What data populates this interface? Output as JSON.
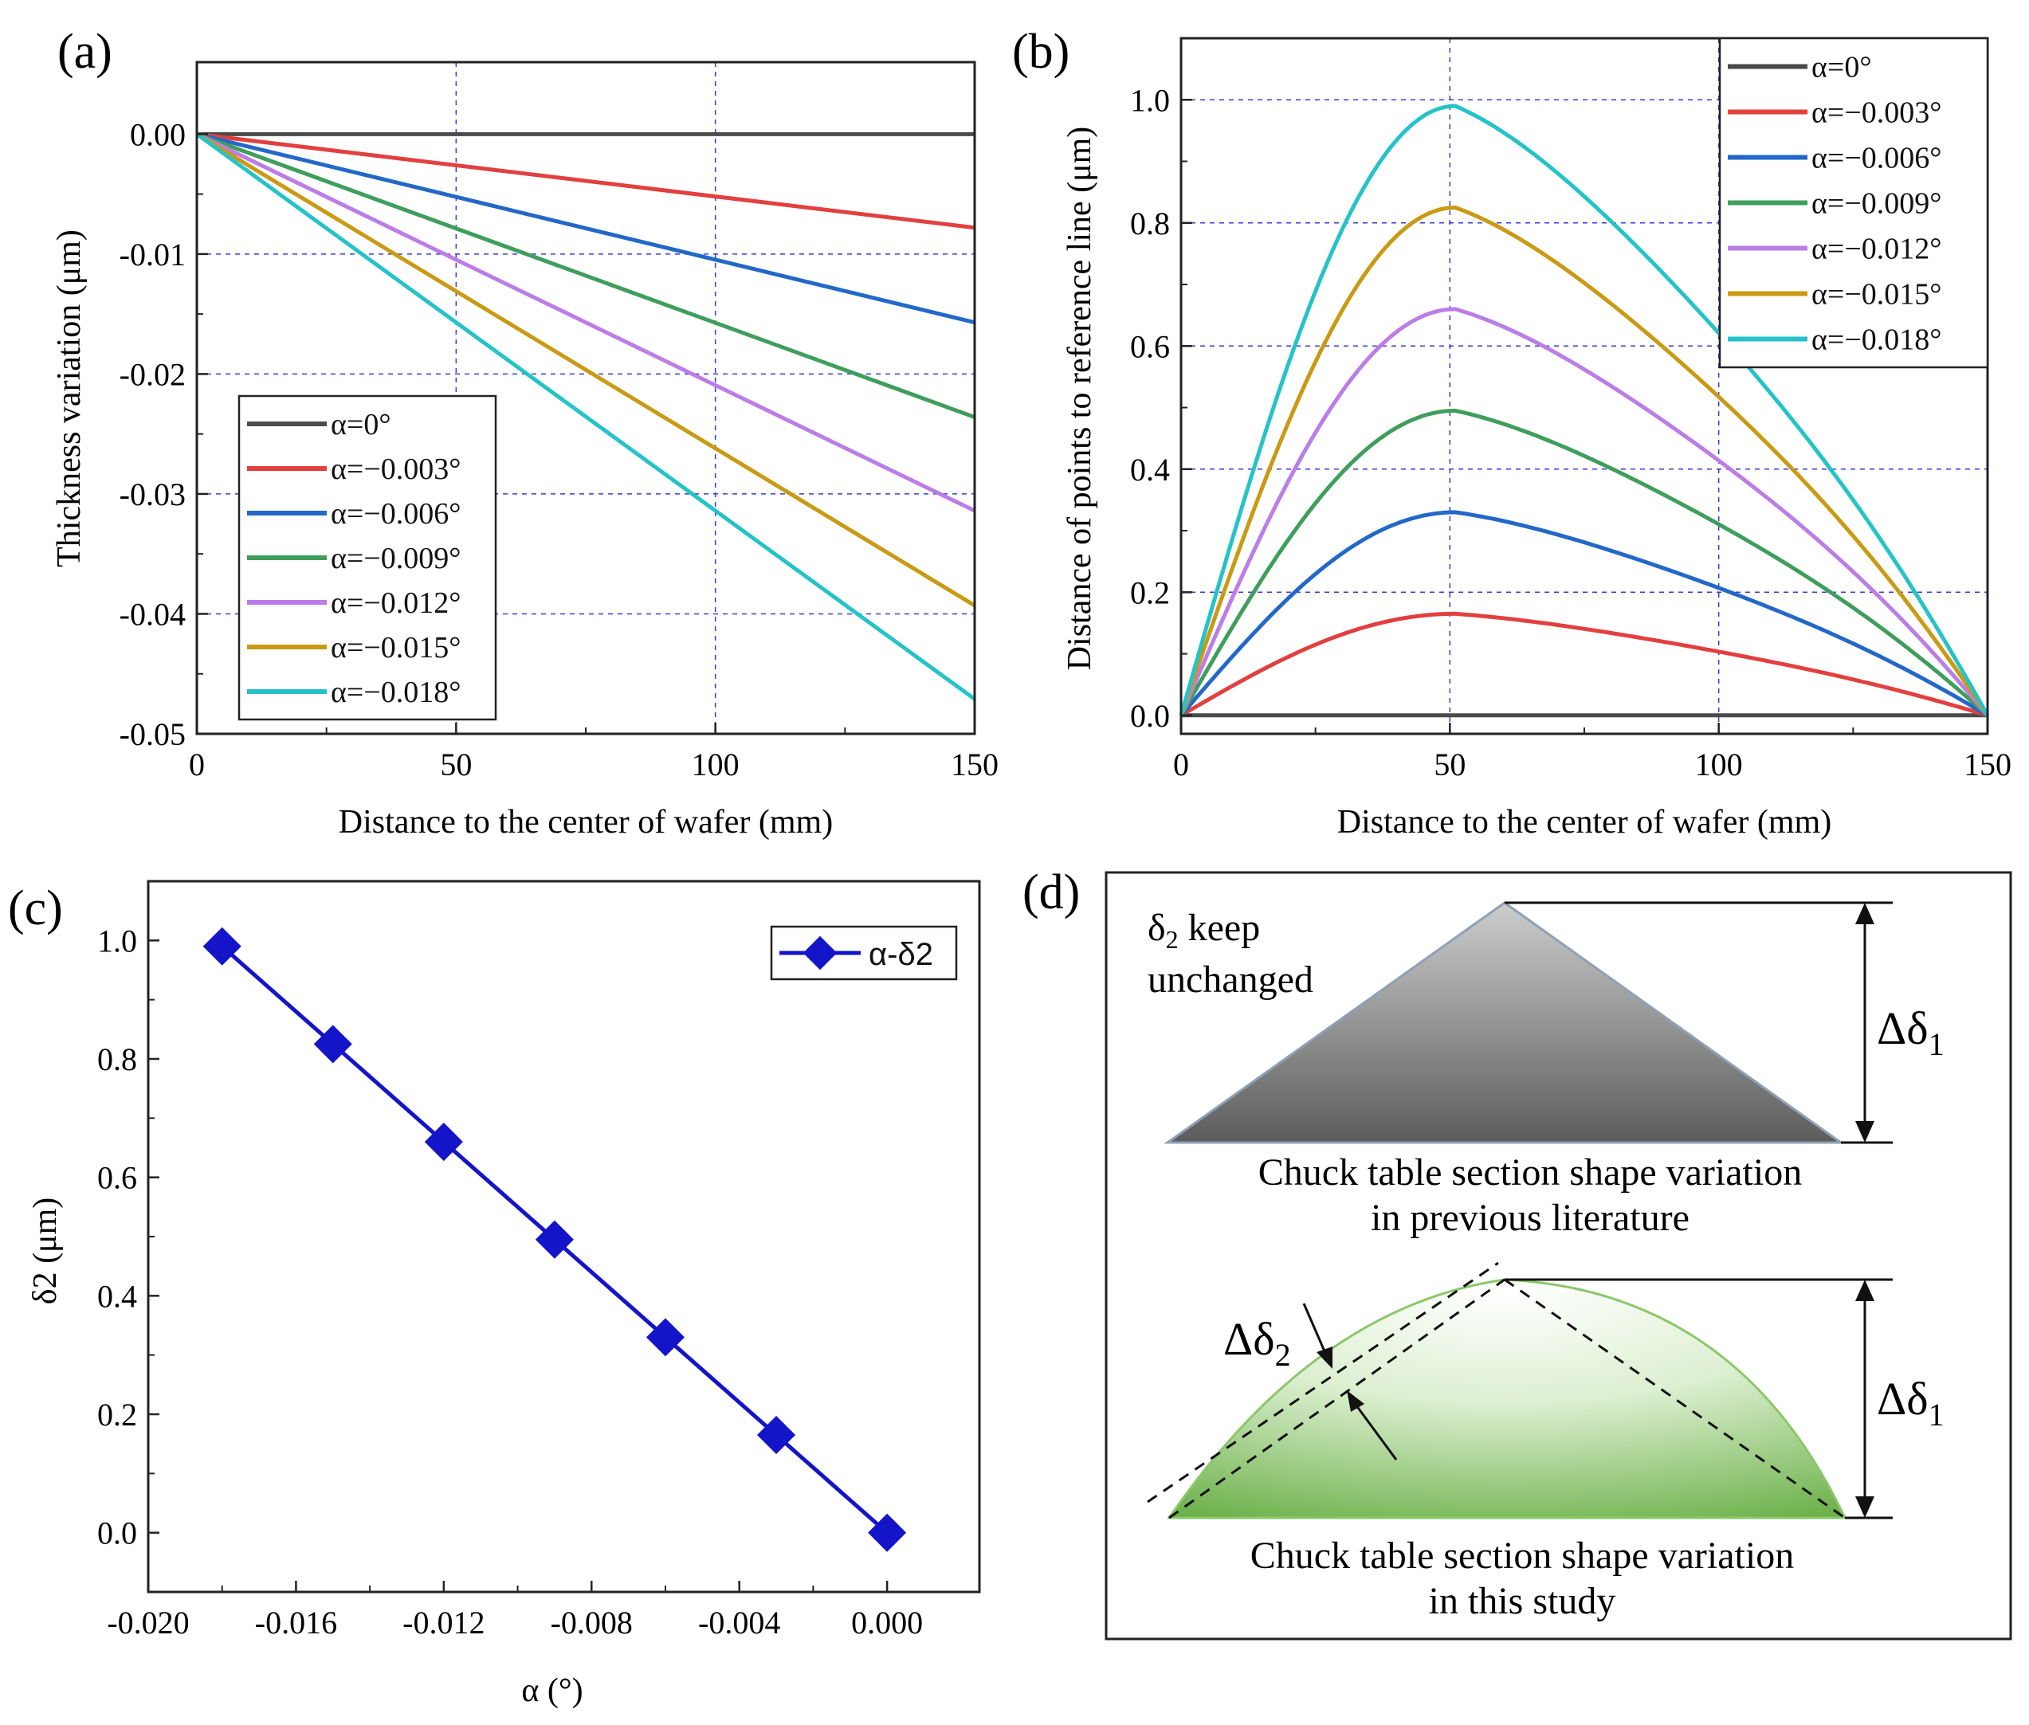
{
  "chart_data": [
    {
      "id": "a",
      "type": "line",
      "panel_label": "(a)",
      "xlabel": "Distance to the center of wafer (mm)",
      "ylabel": "Thickness variation (μm)",
      "xlim": [
        0,
        150
      ],
      "ylim": [
        -0.05,
        0.006
      ],
      "xticks": [
        0,
        50,
        100,
        150
      ],
      "xtick_labels": [
        "0",
        "50",
        "100",
        "150"
      ],
      "yticks": [
        0,
        -0.01,
        -0.02,
        -0.03,
        -0.04,
        -0.05
      ],
      "ytick_labels": [
        "0.00",
        "-0.01",
        "-0.02",
        "-0.03",
        "-0.04",
        "-0.05"
      ],
      "grid": "dashed",
      "legend_position": "bottom-left",
      "series": [
        {
          "name": "α=0°",
          "color": "#4a4a4a",
          "x": [
            0,
            150
          ],
          "y": [
            0,
            0
          ]
        },
        {
          "name": "α=−0.003°",
          "color": "#e2403f",
          "x": [
            0,
            150
          ],
          "y": [
            0,
            -0.0078
          ]
        },
        {
          "name": "α=−0.006°",
          "color": "#2368c9",
          "x": [
            0,
            150
          ],
          "y": [
            0,
            -0.0157
          ]
        },
        {
          "name": "α=−0.009°",
          "color": "#3f9e5c",
          "x": [
            0,
            150
          ],
          "y": [
            0,
            -0.0236
          ]
        },
        {
          "name": "α=−0.012°",
          "color": "#bb7de6",
          "x": [
            0,
            150
          ],
          "y": [
            0,
            -0.0314
          ]
        },
        {
          "name": "α=−0.015°",
          "color": "#c99a13",
          "x": [
            0,
            150
          ],
          "y": [
            0,
            -0.0393
          ]
        },
        {
          "name": "α=−0.018°",
          "color": "#25c3c8",
          "x": [
            0,
            150
          ],
          "y": [
            0,
            -0.0471
          ]
        }
      ]
    },
    {
      "id": "b",
      "type": "line",
      "panel_label": "(b)",
      "xlabel": "Distance to the center of wafer (mm)",
      "ylabel": "Distance of points to reference line (μm)",
      "xlim": [
        0,
        150
      ],
      "ylim": [
        -0.03,
        1.1
      ],
      "xticks": [
        0,
        50,
        100,
        150
      ],
      "xtick_labels": [
        "0",
        "50",
        "100",
        "150"
      ],
      "yticks": [
        0,
        0.2,
        0.4,
        0.6,
        0.8,
        1.0
      ],
      "ytick_labels": [
        "0.0",
        "0.2",
        "0.4",
        "0.6",
        "0.8",
        "1.0"
      ],
      "grid": "dashed",
      "legend_position": "top-right",
      "peak_x": 51,
      "series": [
        {
          "name": "α=0°",
          "color": "#4a4a4a",
          "peak": 0
        },
        {
          "name": "α=−0.003°",
          "color": "#e2403f",
          "peak": 0.165
        },
        {
          "name": "α=−0.006°",
          "color": "#2368c9",
          "peak": 0.33
        },
        {
          "name": "α=−0.009°",
          "color": "#3f9e5c",
          "peak": 0.495
        },
        {
          "name": "α=−0.012°",
          "color": "#bb7de6",
          "peak": 0.66
        },
        {
          "name": "α=−0.015°",
          "color": "#c99a13",
          "peak": 0.825
        },
        {
          "name": "α=−0.018°",
          "color": "#25c3c8",
          "peak": 0.99
        }
      ]
    },
    {
      "id": "c",
      "type": "line",
      "panel_label": "(c)",
      "xlabel": "α (°)",
      "ylabel": "δ2 (μm)",
      "xlim": [
        -0.02,
        0.0025
      ],
      "ylim": [
        -0.1,
        1.1
      ],
      "xticks": [
        -0.02,
        -0.016,
        -0.012,
        -0.008,
        -0.004,
        0
      ],
      "xtick_labels": [
        "-0.020",
        "-0.016",
        "-0.012",
        "-0.008",
        "-0.004",
        "0.000"
      ],
      "yticks": [
        0,
        0.2,
        0.4,
        0.6,
        0.8,
        1.0
      ],
      "ytick_labels": [
        "0.0",
        "0.2",
        "0.4",
        "0.6",
        "0.8",
        "1.0"
      ],
      "legend_position": "top-right",
      "series": [
        {
          "name": "α-δ2",
          "color": "#1414c8",
          "x": [
            -0.018,
            -0.015,
            -0.012,
            -0.009,
            -0.006,
            -0.003,
            0
          ],
          "y": [
            0.99,
            0.825,
            0.66,
            0.495,
            0.33,
            0.165,
            0
          ]
        }
      ]
    }
  ],
  "panel_d": {
    "label": "(d)",
    "top_note_prefix": "δ",
    "top_note_sub": "2",
    "top_note_suffix": " keep",
    "top_note_line2": "unchanged",
    "top_caption_line1": "Chuck table section shape variation",
    "top_caption_line2": "in previous literature",
    "bottom_caption_line1": "Chuck table section shape variation",
    "bottom_caption_line2": "in this study",
    "delta1_symbol": "Δδ",
    "delta1_sub": "1",
    "delta2_symbol": "Δδ",
    "delta2_sub": "2"
  }
}
